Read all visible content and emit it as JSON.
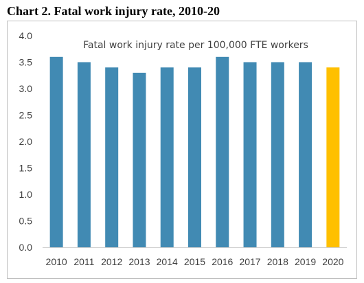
{
  "chart_data": {
    "type": "bar",
    "title": "Chart 2. Fatal work injury rate, 2010-20",
    "annotation": "Fatal work injury rate per 100,000 FTE workers",
    "categories": [
      "2010",
      "2011",
      "2012",
      "2013",
      "2014",
      "2015",
      "2016",
      "2017",
      "2018",
      "2019",
      "2020"
    ],
    "values": [
      3.6,
      3.5,
      3.4,
      3.3,
      3.4,
      3.4,
      3.6,
      3.5,
      3.5,
      3.5,
      3.4
    ],
    "ylim": [
      0,
      4.0
    ],
    "yticks": [
      "0.0",
      "0.5",
      "1.0",
      "1.5",
      "2.0",
      "2.5",
      "3.0",
      "3.5",
      "4.0"
    ],
    "grid": false,
    "legend": "none",
    "colors": {
      "bar": "#418AB3",
      "highlight": "#FFC000",
      "highlight_category": "2020"
    }
  }
}
